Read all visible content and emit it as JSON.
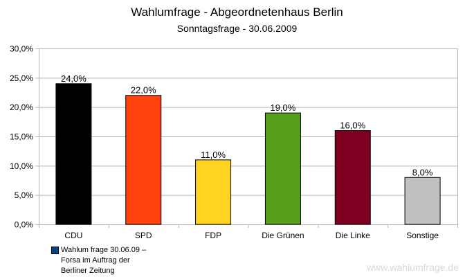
{
  "chart_data": {
    "type": "bar",
    "title": "Wahlumfrage - Abgeordnetenhaus Berlin",
    "subtitle": "Sonntagsfrage - 30.06.2009",
    "categories": [
      "CDU",
      "SPD",
      "FDP",
      "Die Grünen",
      "Die Linke",
      "Sonstige"
    ],
    "values": [
      24.0,
      22.0,
      11.0,
      19.0,
      16.0,
      8.0
    ],
    "value_labels": [
      "24,0%",
      "22,0%",
      "11,0%",
      "19,0%",
      "16,0%",
      "8,0%"
    ],
    "colors": [
      "#000000",
      "#ff420e",
      "#ffd320",
      "#579d1c",
      "#7e0021",
      "#c0c0c0"
    ],
    "ylim": [
      0,
      30
    ],
    "yticks": [
      "0,0%",
      "5,0%",
      "10,0%",
      "15,0%",
      "20,0%",
      "25,0%",
      "30,0%"
    ],
    "grid": true,
    "legend": {
      "label": "Wahlum frage 30.06.09 – Forsa im  Auftrag der Berliner Zeitung",
      "color": "#004586",
      "placement": "bottom-left"
    },
    "xlabel": "",
    "ylabel": ""
  },
  "watermark": "www.wahlumfrage.de"
}
